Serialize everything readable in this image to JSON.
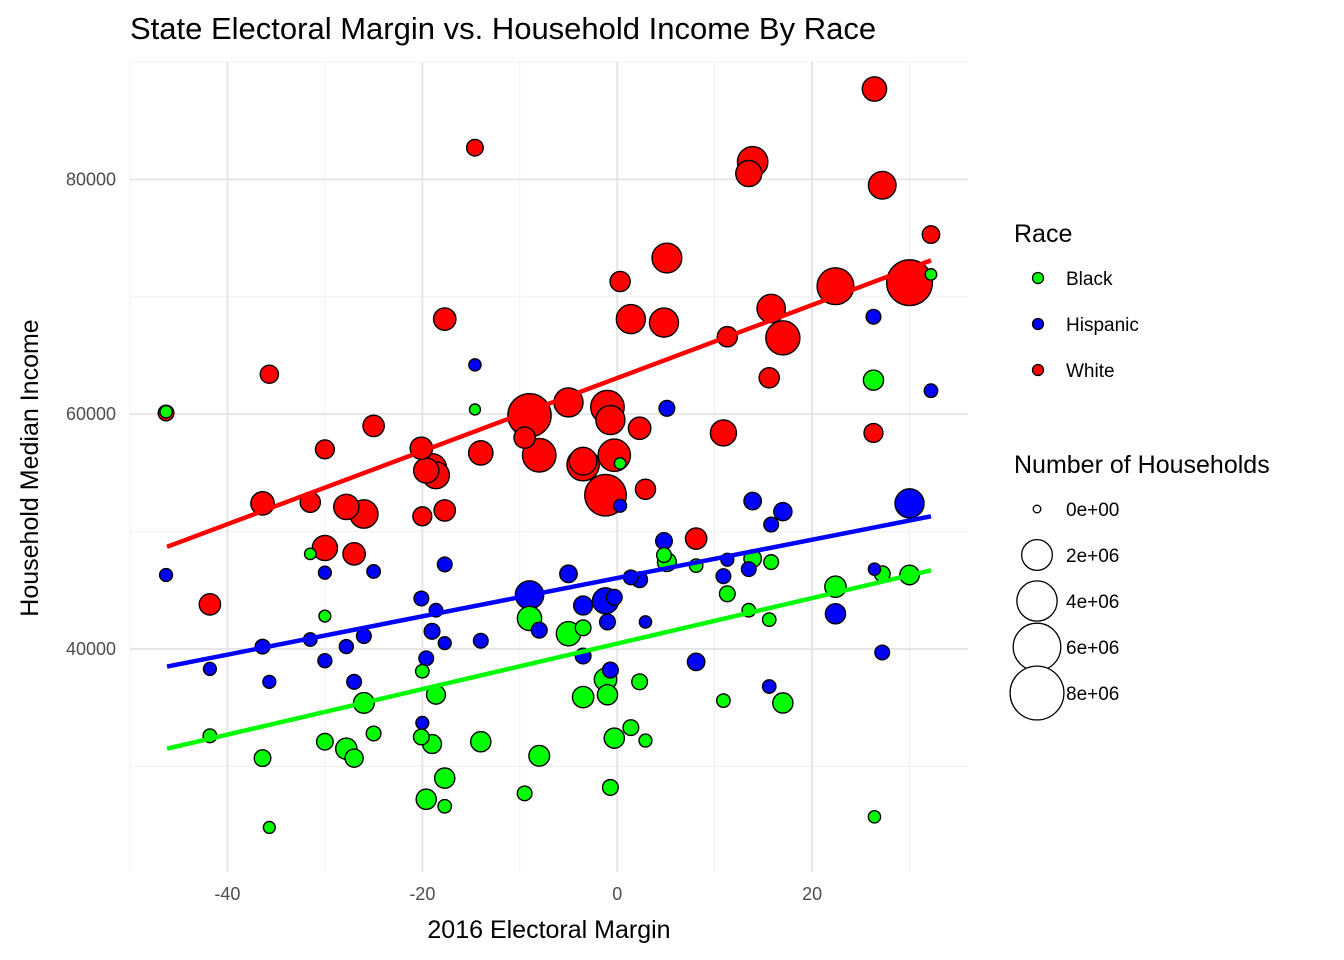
{
  "chart_data": {
    "type": "scatter",
    "title": "State Electoral Margin vs. Household Income By Race",
    "xlabel": "2016 Electoral Margin",
    "ylabel": "Household Median Income",
    "xlim": [
      -50,
      36
    ],
    "ylim": [
      21000,
      90000
    ],
    "x_ticks": [
      -40,
      -20,
      0,
      20
    ],
    "x_tick_labels": [
      "-40",
      "-20",
      "0",
      "20"
    ],
    "y_ticks": [
      40000,
      60000,
      80000
    ],
    "y_tick_labels": [
      "40000",
      "60000",
      "80000"
    ],
    "grid": true,
    "legend_placement": "right",
    "legend": {
      "race_title": "Race",
      "race_entries": [
        {
          "name": "Black",
          "color": "#00ff00"
        },
        {
          "name": "Hispanic",
          "color": "#0000ff"
        },
        {
          "name": "White",
          "color": "#ff0000"
        }
      ],
      "size_title": "Number of Households",
      "size_entries": [
        {
          "label": "0e+00",
          "value": 0
        },
        {
          "label": "2e+06",
          "value": 2000000
        },
        {
          "label": "4e+06",
          "value": 4000000
        },
        {
          "label": "6e+06",
          "value": 6000000
        },
        {
          "label": "8e+06",
          "value": 8000000
        }
      ]
    },
    "series": [
      {
        "name": "Black",
        "color": "#00ff00",
        "trend": {
          "x": [
            -46.2,
            32.2
          ],
          "y": [
            31500,
            46700
          ]
        },
        "points": [
          {
            "x": -46.3,
            "y": 60200,
            "size": 60000
          },
          {
            "x": -41.8,
            "y": 32600,
            "size": 110000
          },
          {
            "x": -36.4,
            "y": 30700,
            "size": 250000
          },
          {
            "x": -35.7,
            "y": 24800,
            "size": 50000
          },
          {
            "x": -31.5,
            "y": 48100,
            "size": 40000
          },
          {
            "x": -30.0,
            "y": 42800,
            "size": 50000
          },
          {
            "x": -30.0,
            "y": 32100,
            "size": 250000
          },
          {
            "x": -27.8,
            "y": 31500,
            "size": 600000
          },
          {
            "x": -27.0,
            "y": 30700,
            "size": 350000
          },
          {
            "x": -26.0,
            "y": 35400,
            "size": 550000
          },
          {
            "x": -25.0,
            "y": 32800,
            "size": 150000
          },
          {
            "x": -20.1,
            "y": 32500,
            "size": 200000
          },
          {
            "x": -20.0,
            "y": 38100,
            "size": 100000
          },
          {
            "x": -19.6,
            "y": 27200,
            "size": 500000
          },
          {
            "x": -19.0,
            "y": 31900,
            "size": 400000
          },
          {
            "x": -18.6,
            "y": 36100,
            "size": 400000
          },
          {
            "x": -17.7,
            "y": 29000,
            "size": 500000
          },
          {
            "x": -17.7,
            "y": 26600,
            "size": 100000
          },
          {
            "x": -14.6,
            "y": 60400,
            "size": 30000
          },
          {
            "x": -14.0,
            "y": 32100,
            "size": 500000
          },
          {
            "x": -9.5,
            "y": 27700,
            "size": 150000
          },
          {
            "x": -9.0,
            "y": 42600,
            "size": 900000
          },
          {
            "x": -8.0,
            "y": 30900,
            "size": 550000
          },
          {
            "x": -5.0,
            "y": 41300,
            "size": 900000
          },
          {
            "x": -3.5,
            "y": 41800,
            "size": 200000
          },
          {
            "x": -3.5,
            "y": 35900,
            "size": 600000
          },
          {
            "x": -1.2,
            "y": 37400,
            "size": 700000
          },
          {
            "x": -1.0,
            "y": 36100,
            "size": 500000
          },
          {
            "x": -0.7,
            "y": 28200,
            "size": 200000
          },
          {
            "x": -0.3,
            "y": 32400,
            "size": 500000
          },
          {
            "x": 0.3,
            "y": 55800,
            "size": 40000
          },
          {
            "x": 1.4,
            "y": 33300,
            "size": 200000
          },
          {
            "x": 2.3,
            "y": 37200,
            "size": 200000
          },
          {
            "x": 2.9,
            "y": 32200,
            "size": 80000
          },
          {
            "x": 4.8,
            "y": 48000,
            "size": 150000
          },
          {
            "x": 5.1,
            "y": 47400,
            "size": 400000
          },
          {
            "x": 8.1,
            "y": 47100,
            "size": 100000
          },
          {
            "x": 10.9,
            "y": 35600,
            "size": 100000
          },
          {
            "x": 11.3,
            "y": 44700,
            "size": 200000
          },
          {
            "x": 13.5,
            "y": 43300,
            "size": 100000
          },
          {
            "x": 13.9,
            "y": 47700,
            "size": 300000
          },
          {
            "x": 15.6,
            "y": 42500,
            "size": 100000
          },
          {
            "x": 15.8,
            "y": 47400,
            "size": 150000
          },
          {
            "x": 17.0,
            "y": 35400,
            "size": 500000
          },
          {
            "x": 22.4,
            "y": 45300,
            "size": 600000
          },
          {
            "x": 26.3,
            "y": 62900,
            "size": 500000
          },
          {
            "x": 26.4,
            "y": 25700,
            "size": 60000
          },
          {
            "x": 27.2,
            "y": 46400,
            "size": 200000
          },
          {
            "x": 30.0,
            "y": 46300,
            "size": 450000
          },
          {
            "x": 32.2,
            "y": 71900,
            "size": 40000
          }
        ]
      },
      {
        "name": "Hispanic",
        "color": "#0000ff",
        "trend": {
          "x": [
            -46.2,
            32.2
          ],
          "y": [
            38500,
            51300
          ]
        },
        "points": [
          {
            "x": -46.3,
            "y": 46300,
            "size": 80000
          },
          {
            "x": -41.8,
            "y": 38300,
            "size": 80000
          },
          {
            "x": -36.4,
            "y": 40200,
            "size": 150000
          },
          {
            "x": -35.7,
            "y": 37200,
            "size": 80000
          },
          {
            "x": -31.5,
            "y": 40800,
            "size": 100000
          },
          {
            "x": -30.0,
            "y": 46500,
            "size": 80000
          },
          {
            "x": -30.0,
            "y": 39000,
            "size": 120000
          },
          {
            "x": -27.8,
            "y": 40200,
            "size": 120000
          },
          {
            "x": -27.0,
            "y": 37200,
            "size": 150000
          },
          {
            "x": -26.0,
            "y": 41100,
            "size": 150000
          },
          {
            "x": -25.0,
            "y": 46600,
            "size": 100000
          },
          {
            "x": -20.1,
            "y": 44300,
            "size": 150000
          },
          {
            "x": -20.0,
            "y": 33700,
            "size": 80000
          },
          {
            "x": -19.6,
            "y": 39200,
            "size": 150000
          },
          {
            "x": -19.0,
            "y": 41500,
            "size": 200000
          },
          {
            "x": -18.6,
            "y": 43300,
            "size": 100000
          },
          {
            "x": -17.7,
            "y": 47200,
            "size": 150000
          },
          {
            "x": -17.7,
            "y": 40500,
            "size": 80000
          },
          {
            "x": -14.6,
            "y": 64200,
            "size": 60000
          },
          {
            "x": -14.0,
            "y": 40700,
            "size": 150000
          },
          {
            "x": -9.0,
            "y": 44600,
            "size": 1400000
          },
          {
            "x": -8.0,
            "y": 41600,
            "size": 200000
          },
          {
            "x": -5.0,
            "y": 46400,
            "size": 300000
          },
          {
            "x": -3.5,
            "y": 43700,
            "size": 400000
          },
          {
            "x": -3.5,
            "y": 39400,
            "size": 200000
          },
          {
            "x": -1.2,
            "y": 44100,
            "size": 1100000
          },
          {
            "x": -1.0,
            "y": 42300,
            "size": 200000
          },
          {
            "x": -0.7,
            "y": 38200,
            "size": 200000
          },
          {
            "x": -0.3,
            "y": 44400,
            "size": 200000
          },
          {
            "x": 0.3,
            "y": 52200,
            "size": 80000
          },
          {
            "x": 1.4,
            "y": 46100,
            "size": 150000
          },
          {
            "x": 2.3,
            "y": 45900,
            "size": 200000
          },
          {
            "x": 2.9,
            "y": 42300,
            "size": 60000
          },
          {
            "x": 4.8,
            "y": 49200,
            "size": 250000
          },
          {
            "x": 5.1,
            "y": 60500,
            "size": 200000
          },
          {
            "x": 8.1,
            "y": 38900,
            "size": 300000
          },
          {
            "x": 10.9,
            "y": 46200,
            "size": 150000
          },
          {
            "x": 11.3,
            "y": 47600,
            "size": 80000
          },
          {
            "x": 13.5,
            "y": 46800,
            "size": 150000
          },
          {
            "x": 13.9,
            "y": 52600,
            "size": 300000
          },
          {
            "x": 15.6,
            "y": 36800,
            "size": 100000
          },
          {
            "x": 15.8,
            "y": 50600,
            "size": 150000
          },
          {
            "x": 17.0,
            "y": 51700,
            "size": 350000
          },
          {
            "x": 22.4,
            "y": 43000,
            "size": 500000
          },
          {
            "x": 26.3,
            "y": 68300,
            "size": 150000
          },
          {
            "x": 26.4,
            "y": 46800,
            "size": 60000
          },
          {
            "x": 27.2,
            "y": 39700,
            "size": 150000
          },
          {
            "x": 30.0,
            "y": 52400,
            "size": 1500000
          },
          {
            "x": 32.2,
            "y": 62000,
            "size": 100000
          }
        ]
      },
      {
        "name": "White",
        "color": "#ff0000",
        "trend": {
          "x": [
            -46.2,
            32.2
          ],
          "y": [
            48700,
            73100
          ]
        },
        "points": [
          {
            "x": -46.3,
            "y": 60100,
            "size": 200000
          },
          {
            "x": -41.8,
            "y": 43800,
            "size": 600000
          },
          {
            "x": -36.4,
            "y": 52400,
            "size": 800000
          },
          {
            "x": -35.7,
            "y": 63400,
            "size": 350000
          },
          {
            "x": -31.5,
            "y": 52500,
            "size": 500000
          },
          {
            "x": -30.0,
            "y": 57000,
            "size": 400000
          },
          {
            "x": -30.0,
            "y": 48600,
            "size": 1000000
          },
          {
            "x": -27.8,
            "y": 52100,
            "size": 1000000
          },
          {
            "x": -27.0,
            "y": 48100,
            "size": 700000
          },
          {
            "x": -26.0,
            "y": 51500,
            "size": 1400000
          },
          {
            "x": -25.0,
            "y": 59000,
            "size": 600000
          },
          {
            "x": -20.1,
            "y": 57100,
            "size": 700000
          },
          {
            "x": -20.0,
            "y": 51300,
            "size": 400000
          },
          {
            "x": -19.6,
            "y": 55200,
            "size": 1000000
          },
          {
            "x": -19.0,
            "y": 55400,
            "size": 1500000
          },
          {
            "x": -18.6,
            "y": 54800,
            "size": 1200000
          },
          {
            "x": -17.7,
            "y": 68100,
            "size": 700000
          },
          {
            "x": -17.7,
            "y": 51800,
            "size": 600000
          },
          {
            "x": -14.6,
            "y": 82700,
            "size": 250000
          },
          {
            "x": -14.0,
            "y": 56700,
            "size": 900000
          },
          {
            "x": -9.5,
            "y": 58000,
            "size": 600000
          },
          {
            "x": -9.0,
            "y": 59900,
            "size": 4200000
          },
          {
            "x": -8.0,
            "y": 56500,
            "size": 2200000
          },
          {
            "x": -5.0,
            "y": 61000,
            "size": 1500000
          },
          {
            "x": -3.5,
            "y": 56000,
            "size": 1300000
          },
          {
            "x": -3.5,
            "y": 55700,
            "size": 2000000
          },
          {
            "x": -1.2,
            "y": 53100,
            "size": 3800000
          },
          {
            "x": -1.0,
            "y": 60600,
            "size": 2200000
          },
          {
            "x": -0.7,
            "y": 59500,
            "size": 1500000
          },
          {
            "x": -0.3,
            "y": 56500,
            "size": 2000000
          },
          {
            "x": 0.3,
            "y": 71300,
            "size": 500000
          },
          {
            "x": 1.4,
            "y": 68100,
            "size": 1500000
          },
          {
            "x": 2.3,
            "y": 58800,
            "size": 700000
          },
          {
            "x": 2.9,
            "y": 53600,
            "size": 500000
          },
          {
            "x": 4.8,
            "y": 67800,
            "size": 1500000
          },
          {
            "x": 5.1,
            "y": 73300,
            "size": 1600000
          },
          {
            "x": 8.1,
            "y": 49400,
            "size": 600000
          },
          {
            "x": 10.9,
            "y": 58400,
            "size": 1100000
          },
          {
            "x": 11.3,
            "y": 66600,
            "size": 500000
          },
          {
            "x": 13.5,
            "y": 80500,
            "size": 1100000
          },
          {
            "x": 13.9,
            "y": 81500,
            "size": 1700000
          },
          {
            "x": 15.6,
            "y": 63100,
            "size": 500000
          },
          {
            "x": 15.8,
            "y": 69000,
            "size": 1400000
          },
          {
            "x": 17.0,
            "y": 66500,
            "size": 2300000
          },
          {
            "x": 22.4,
            "y": 70900,
            "size": 2800000
          },
          {
            "x": 26.3,
            "y": 58400,
            "size": 400000
          },
          {
            "x": 26.4,
            "y": 87700,
            "size": 900000
          },
          {
            "x": 27.2,
            "y": 79500,
            "size": 1300000
          },
          {
            "x": 30.0,
            "y": 71200,
            "size": 4800000
          },
          {
            "x": 32.2,
            "y": 75300,
            "size": 300000
          }
        ]
      }
    ]
  }
}
